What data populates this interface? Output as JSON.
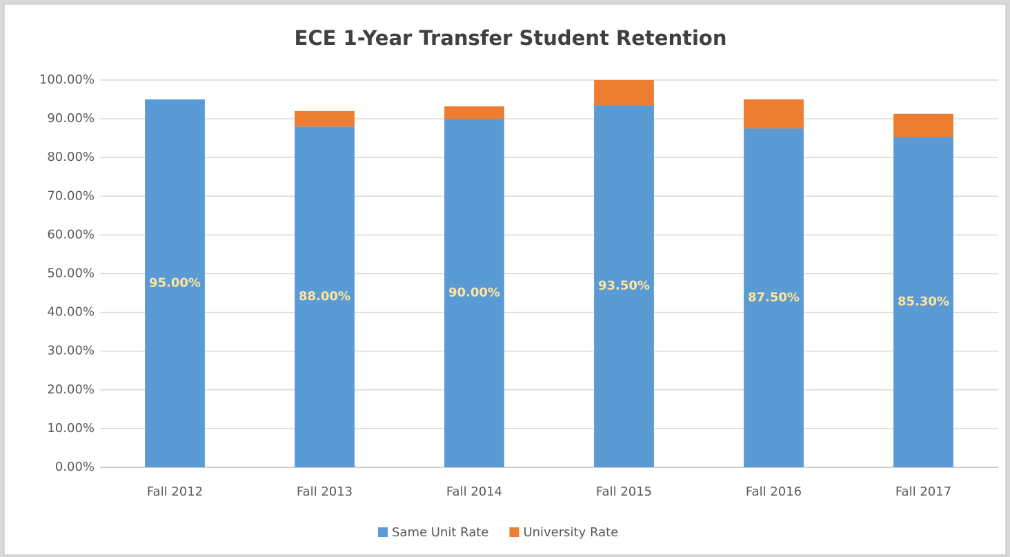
{
  "chart_data": {
    "type": "stacked_bar",
    "title": "ECE 1-Year Transfer Student Retention",
    "categories": [
      "Fall 2012",
      "Fall 2013",
      "Fall 2014",
      "Fall 2015",
      "Fall 2016",
      "Fall 2017"
    ],
    "series": [
      {
        "name": "Same Unit Rate",
        "color": "#5b9bd5",
        "values": [
          95,
          88,
          90,
          93.5,
          87.5,
          85.3
        ],
        "value_labels": [
          "95.00%",
          "88.00%",
          "90.00%",
          "93.50%",
          "87.50%",
          "85.30%"
        ]
      },
      {
        "name": "University Rate",
        "color": "#ed7d31",
        "values": [
          0,
          4,
          3.2,
          6.5,
          7.5,
          6
        ]
      }
    ],
    "ylim": [
      0,
      100
    ],
    "yticks": [
      {
        "value": 0,
        "label": "0.00%"
      },
      {
        "value": 10,
        "label": "10.00%"
      },
      {
        "value": 20,
        "label": "20.00%"
      },
      {
        "value": 30,
        "label": "30.00%"
      },
      {
        "value": 40,
        "label": "40.00%"
      },
      {
        "value": 50,
        "label": "50.00%"
      },
      {
        "value": 60,
        "label": "60.00%"
      },
      {
        "value": 70,
        "label": "70.00%"
      },
      {
        "value": 80,
        "label": "80.00%"
      },
      {
        "value": 90,
        "label": "90.00%"
      },
      {
        "value": 100,
        "label": "100.00%"
      }
    ],
    "grid": true,
    "legend": "bottom"
  }
}
